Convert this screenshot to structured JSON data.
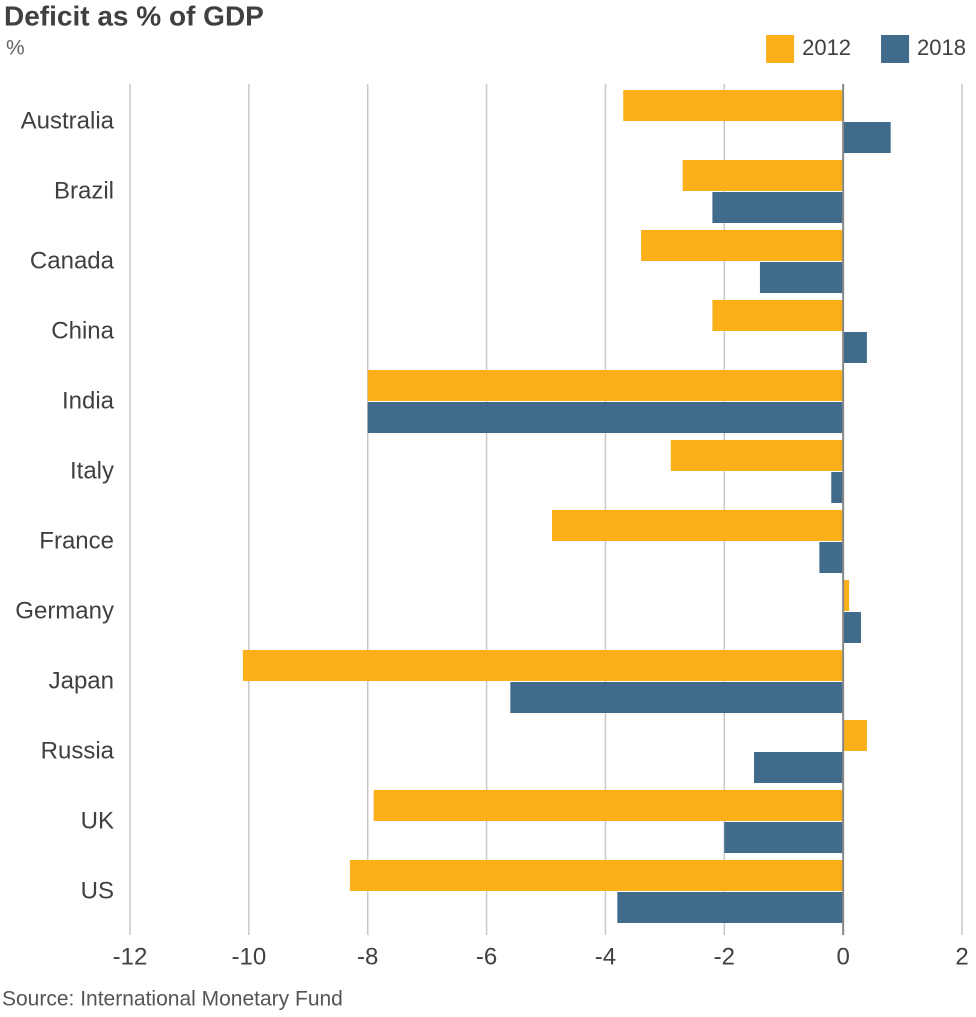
{
  "chart_data": {
    "type": "hbar",
    "title": "Deficit as % of GDP",
    "subtitle": "%",
    "source": "Source: International Monetary Fund",
    "categories": [
      "Australia",
      "Brazil",
      "Canada",
      "China",
      "India",
      "Italy",
      "France",
      "Germany",
      "Japan",
      "Russia",
      "UK",
      "US"
    ],
    "series": [
      {
        "name": "2012",
        "color": "#fbb01a",
        "values": [
          -3.7,
          -2.7,
          -3.4,
          -2.2,
          -8.0,
          -2.9,
          -4.9,
          0.1,
          -10.1,
          0.4,
          -7.9,
          -8.3
        ]
      },
      {
        "name": "2018",
        "color": "#416b8b",
        "values": [
          0.8,
          -2.2,
          -1.4,
          0.4,
          -8.0,
          -0.2,
          -0.4,
          0.3,
          -5.6,
          -1.5,
          -2.0,
          -3.8
        ]
      }
    ],
    "xlim": [
      -12,
      2
    ],
    "xticks": [
      -12,
      -10,
      -8,
      -6,
      -4,
      -2,
      0,
      2
    ],
    "grid": true,
    "legend": "top-right"
  }
}
